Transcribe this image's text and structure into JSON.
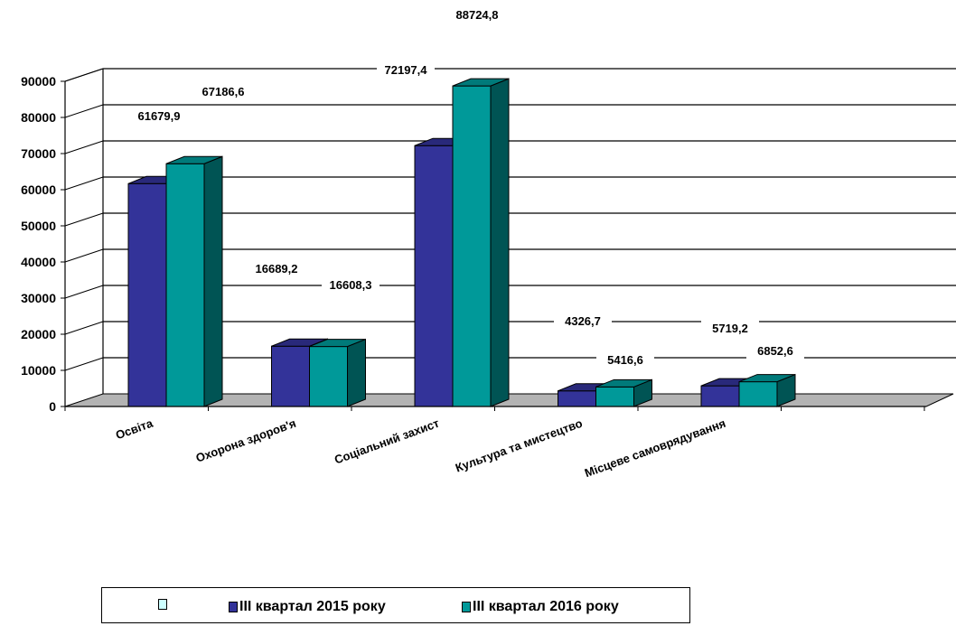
{
  "chart_data": {
    "type": "bar",
    "categories": [
      "Освіта",
      "Охорона здоров'я",
      "Соціальний захист",
      "Культура  та  мистецтво",
      "Місцеве самоврядування"
    ],
    "series": [
      {
        "name": "ІІІ квартал 2015 року",
        "values": [
          61679.9,
          16689.2,
          72197.4,
          4326.7,
          5719.2
        ],
        "labels": [
          "61679,9",
          "16689,2",
          "72197,4",
          "4326,7",
          "5719,2"
        ],
        "color": "#333399"
      },
      {
        "name": "ІІІ квартал 2016 року",
        "values": [
          67186.6,
          16608.3,
          88724.8,
          5416.6,
          6852.6
        ],
        "labels": [
          "67186,6",
          "16608,3",
          "88724,8",
          "5416,6",
          "6852,6"
        ],
        "color": "#009999"
      }
    ],
    "legend_extra": "",
    "y_ticks": [
      "0",
      "10000",
      "20000",
      "30000",
      "40000",
      "50000",
      "60000",
      "70000",
      "80000",
      "90000"
    ],
    "ylim": [
      0,
      90000
    ],
    "grid": true,
    "legend_position": "bottom",
    "title": "",
    "xlabel": "",
    "ylabel": ""
  }
}
